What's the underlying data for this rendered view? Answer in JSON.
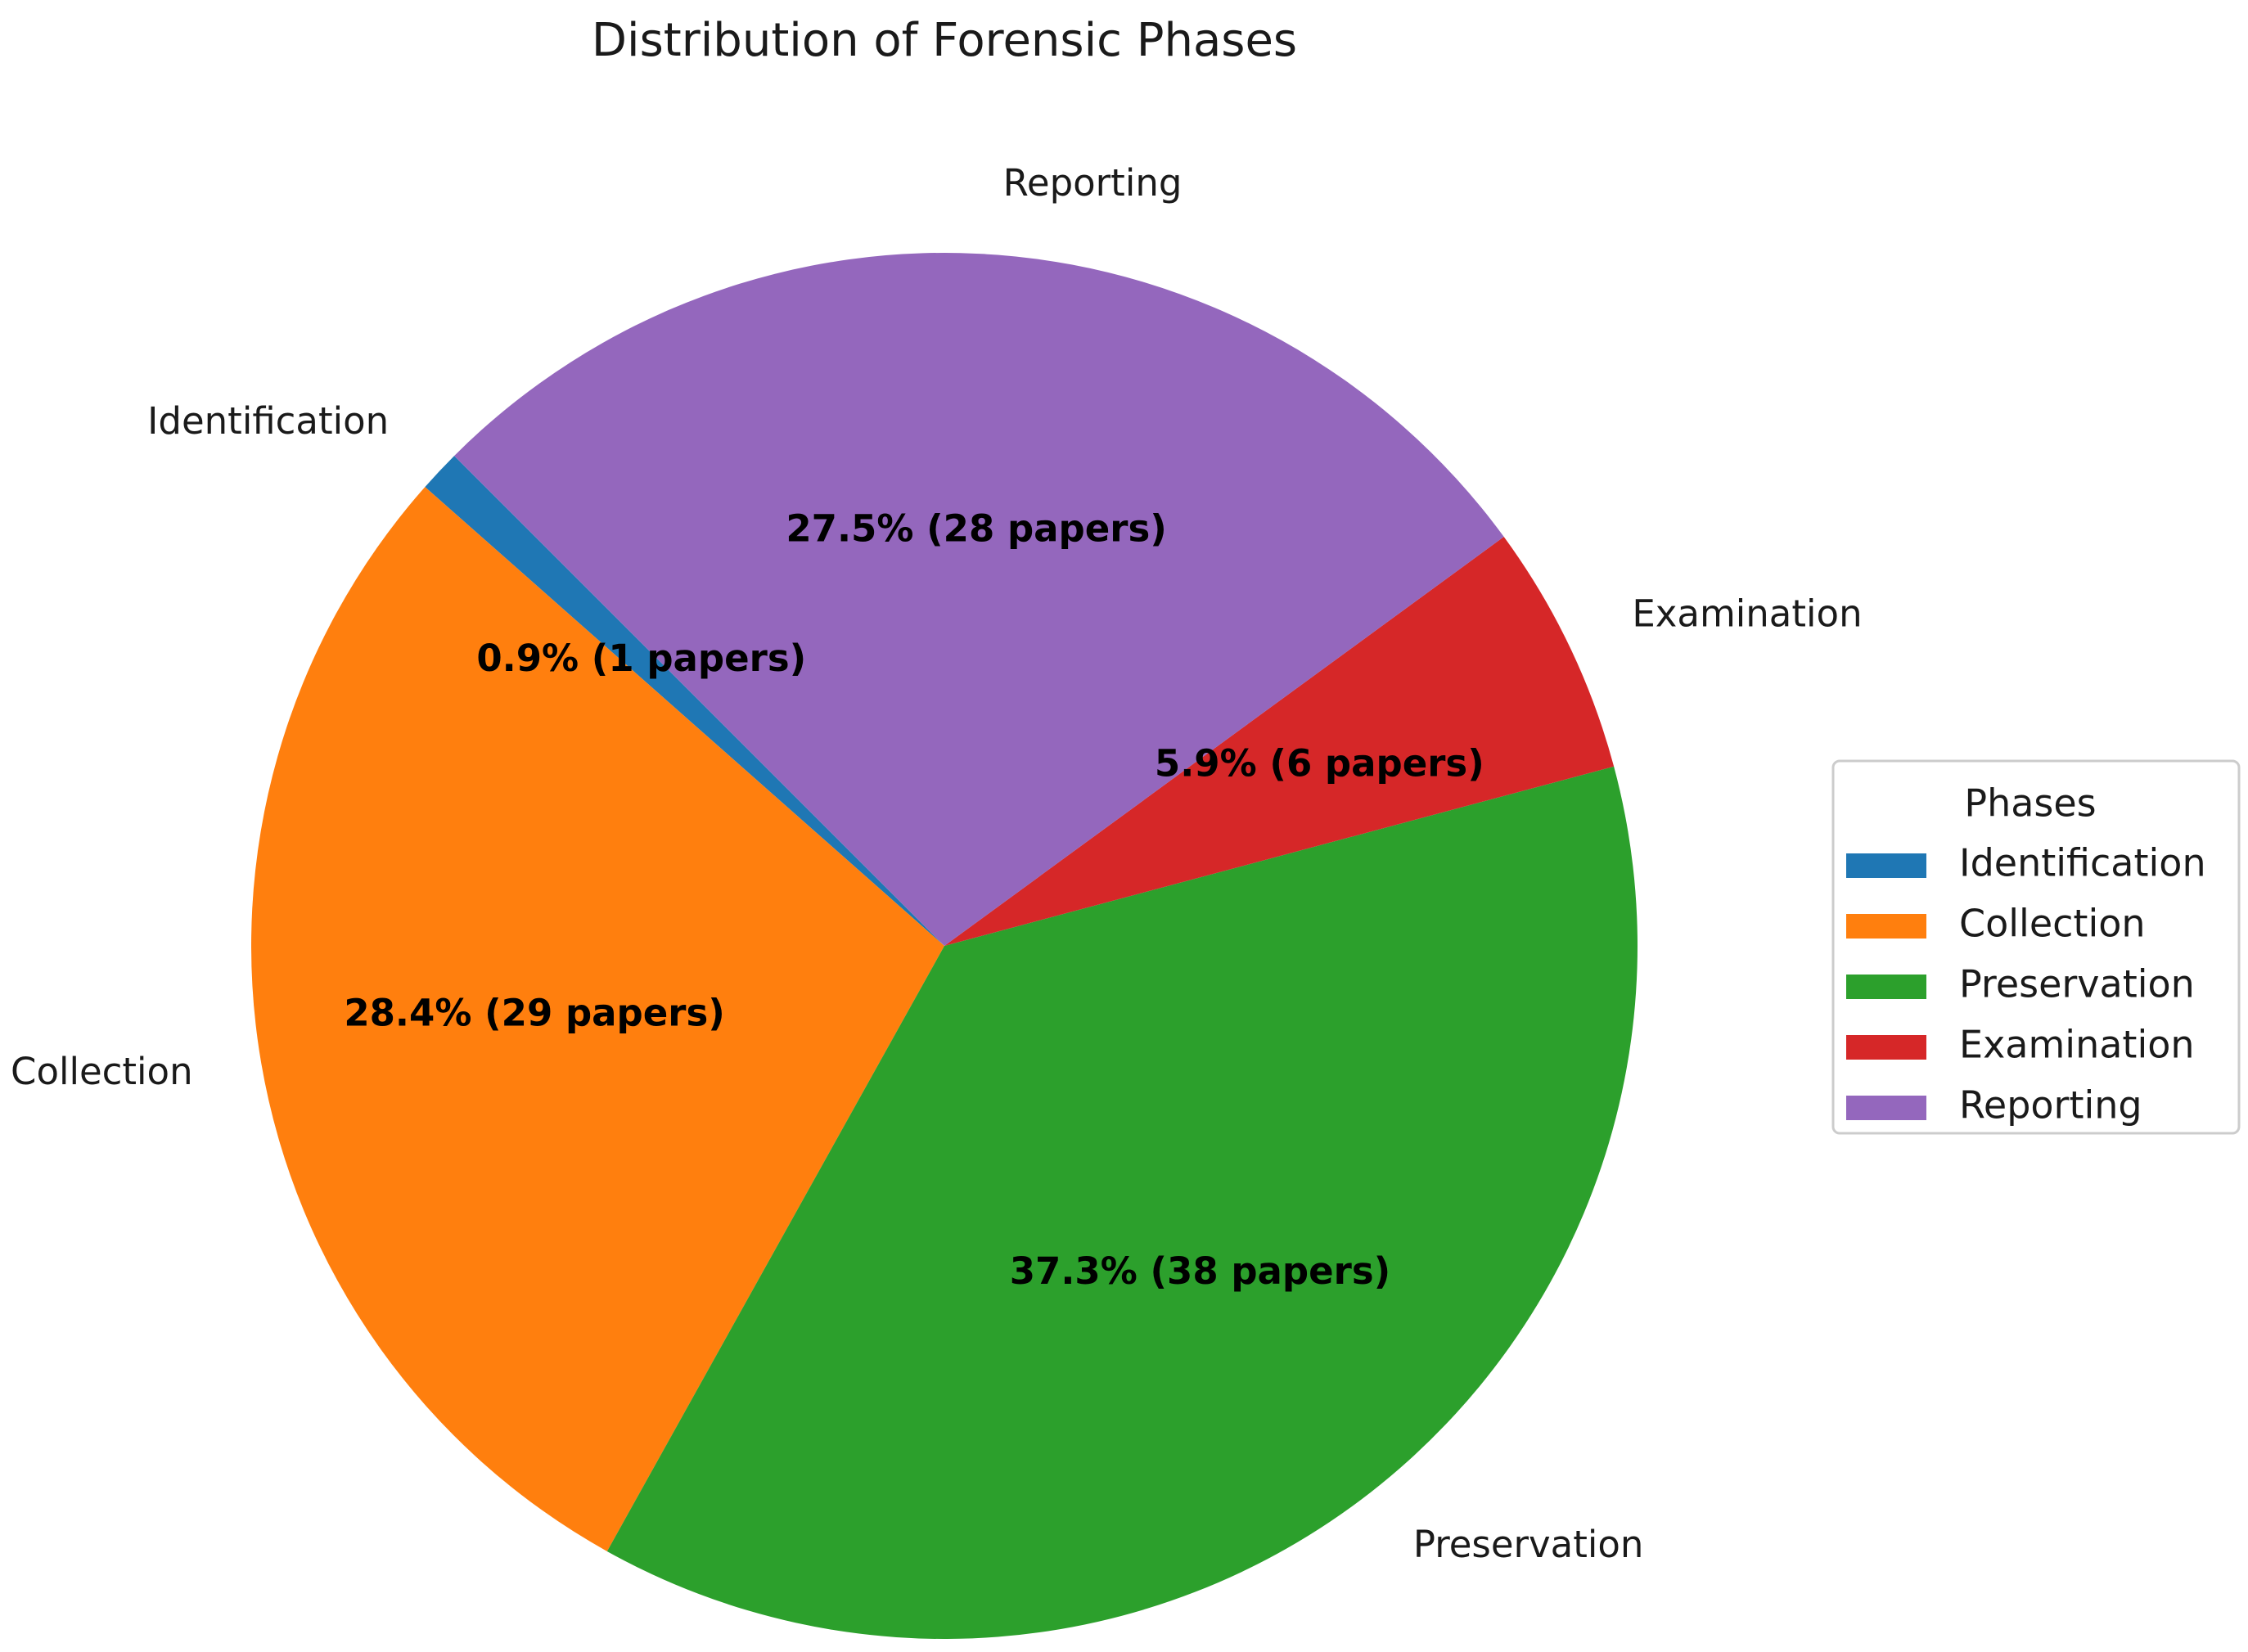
{
  "chart_data": {
    "type": "pie",
    "title": "Distribution of Forensic Phases",
    "slices": [
      {
        "label": "Identification",
        "value": 1,
        "percent": 0.9,
        "color": "#1f77b4",
        "value_label": "0.9% (1 papers)"
      },
      {
        "label": "Collection",
        "value": 29,
        "percent": 28.4,
        "color": "#ff7f0e",
        "value_label": "28.4% (29 papers)"
      },
      {
        "label": "Preservation",
        "value": 38,
        "percent": 37.3,
        "color": "#2ca02c",
        "value_label": "37.3% (38 papers)"
      },
      {
        "label": "Examination",
        "value": 6,
        "percent": 5.9,
        "color": "#d62728",
        "value_label": "5.9% (6 papers)"
      },
      {
        "label": "Reporting",
        "value": 28,
        "percent": 27.5,
        "color": "#9467bd",
        "value_label": "27.5% (28 papers)"
      }
    ],
    "legend": {
      "title": "Phases",
      "placement": "center-right"
    }
  }
}
